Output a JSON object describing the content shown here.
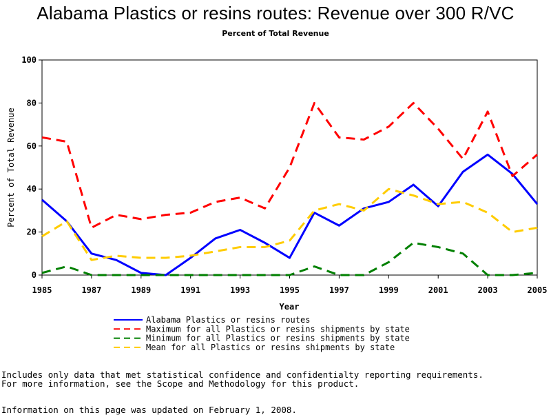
{
  "header": {
    "title": "Alabama Plastics or resins routes: Revenue over 300 R/VC",
    "subtitle": "Percent of Total Revenue"
  },
  "chart_data": {
    "type": "line",
    "xlabel": "Year",
    "ylabel": "Percent of Total Revenue",
    "xlim": [
      1985,
      2005
    ],
    "ylim": [
      0,
      100
    ],
    "x_ticks": [
      "1985",
      "1987",
      "1989",
      "1991",
      "1993",
      "1995",
      "1997",
      "1999",
      "2001",
      "2003",
      "2005"
    ],
    "y_ticks": [
      "0",
      "20",
      "40",
      "60",
      "80",
      "100"
    ],
    "x": [
      1985,
      1986,
      1987,
      1988,
      1989,
      1990,
      1991,
      1992,
      1993,
      1994,
      1995,
      1996,
      1997,
      1998,
      1999,
      2000,
      2001,
      2002,
      2003,
      2004,
      2005
    ],
    "series": [
      {
        "name": "Alabama Plastics or resins routes",
        "color": "#0000ff",
        "dash": "solid",
        "values": [
          35,
          25,
          10,
          7,
          1,
          0,
          8,
          17,
          21,
          15,
          8,
          29,
          23,
          31,
          34,
          42,
          32,
          48,
          56,
          47,
          33
        ]
      },
      {
        "name": "Maximum for all Plastics or resins shipments by state",
        "color": "#ff0000",
        "dash": "dashed",
        "values": [
          64,
          62,
          22,
          28,
          26,
          28,
          29,
          34,
          36,
          31,
          50,
          80,
          64,
          63,
          69,
          80,
          68,
          54,
          76,
          46,
          56
        ]
      },
      {
        "name": "Minimum for all Plastics or resins shipments by state",
        "color": "#008000",
        "dash": "dashed",
        "values": [
          1,
          4,
          0,
          0,
          0,
          0,
          0,
          0,
          0,
          0,
          0,
          4,
          0,
          0,
          6,
          15,
          13,
          10,
          0,
          0,
          1
        ]
      },
      {
        "name": "Mean for all Plastics or resins shipments by state",
        "color": "#ffcc00",
        "dash": "dashed",
        "values": [
          18,
          25,
          7,
          9,
          8,
          8,
          9,
          11,
          13,
          13,
          16,
          30,
          33,
          30,
          40,
          37,
          33,
          34,
          29,
          20,
          22
        ]
      }
    ]
  },
  "notes": {
    "line1": "Includes only data that met statistical confidence and confidentialty reporting requirements.",
    "line2": "For more information, see the Scope and Methodology for this product.",
    "line3": "Information on this page was updated on February 1, 2008."
  }
}
